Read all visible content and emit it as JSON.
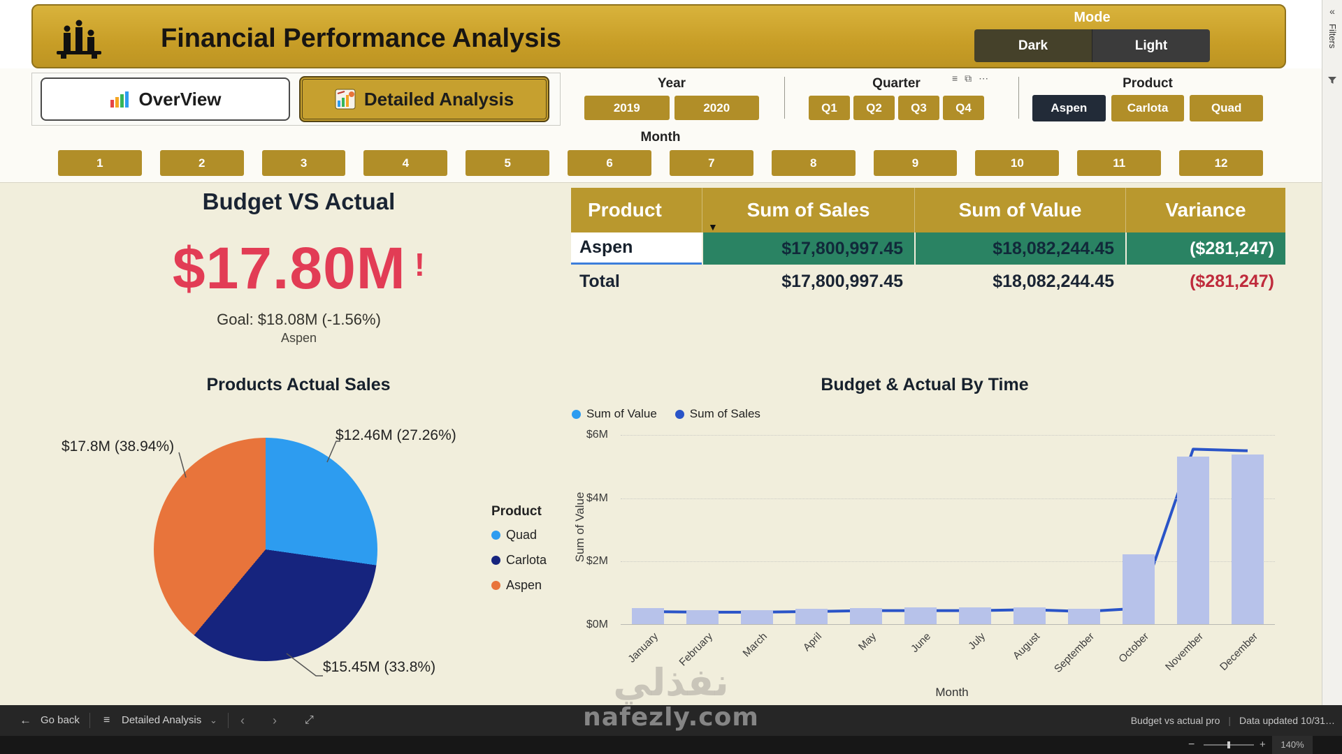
{
  "header": {
    "title": "Financial Performance Analysis",
    "mode": {
      "label": "Mode",
      "options": [
        "Dark",
        "Light"
      ]
    }
  },
  "nav_tabs": [
    {
      "id": "overview",
      "label": "OverView",
      "active": false
    },
    {
      "id": "detailed",
      "label": "Detailed Analysis",
      "active": true
    }
  ],
  "filters": {
    "year": {
      "label": "Year",
      "options": [
        "2019",
        "2020"
      ]
    },
    "quarter": {
      "label": "Quarter",
      "options": [
        "Q1",
        "Q2",
        "Q3",
        "Q4"
      ]
    },
    "product": {
      "label": "Product",
      "options": [
        "Aspen",
        "Carlota",
        "Quad"
      ],
      "selected": "Aspen"
    },
    "month": {
      "label": "Month",
      "options": [
        "1",
        "2",
        "3",
        "4",
        "5",
        "6",
        "7",
        "8",
        "9",
        "10",
        "11",
        "12"
      ]
    }
  },
  "kpi": {
    "title": "Budget VS Actual",
    "value": "$17.80M",
    "alert": "!",
    "goal": "Goal: $18.08M (-1.56%)",
    "product": "Aspen"
  },
  "table": {
    "columns": [
      "Product",
      "Sum of Sales",
      "Sum of Value",
      "Variance"
    ],
    "rows": [
      [
        "Aspen",
        "$17,800,997.45",
        "$18,082,244.45",
        "($281,247)"
      ]
    ],
    "total_row": [
      "Total",
      "$17,800,997.45",
      "$18,082,244.45",
      "($281,247)"
    ]
  },
  "chart_data": [
    {
      "type": "pie",
      "title": "Products Actual Sales",
      "legend_title": "Product",
      "legend_position": "right",
      "slices": [
        {
          "name": "Quad",
          "value_label": "$12.46M (27.26%)",
          "percent": 27.26,
          "color": "#2D9CF0"
        },
        {
          "name": "Carlota",
          "value_label": "$15.45M (33.8%)",
          "percent": 33.8,
          "color": "#16247E"
        },
        {
          "name": "Aspen",
          "value_label": "$17.8M (38.94%)",
          "percent": 38.94,
          "color": "#E8743B"
        }
      ]
    },
    {
      "type": "bar+line",
      "title": "Budget & Actual By Time",
      "xlabel": "Month",
      "ylabel": "Sum of Value",
      "ylim_m": [
        0,
        6
      ],
      "grid": "dotted-horizontal",
      "legend_position": "top-left",
      "yticks": [
        {
          "label": "$0M",
          "value": 0
        },
        {
          "label": "$2M",
          "value": 2
        },
        {
          "label": "$4M",
          "value": 4
        },
        {
          "label": "$6M",
          "value": 6
        }
      ],
      "categories": [
        "January",
        "February",
        "March",
        "April",
        "May",
        "June",
        "July",
        "August",
        "September",
        "October",
        "November",
        "December"
      ],
      "series": [
        {
          "name": "Sum of Value",
          "kind": "bar",
          "color": "#B7C2EA",
          "legend_color": "#2D9CF0",
          "values_m": [
            0.5,
            0.45,
            0.45,
            0.48,
            0.5,
            0.52,
            0.52,
            0.52,
            0.48,
            2.2,
            5.3,
            5.35
          ]
        },
        {
          "name": "Sum of Sales",
          "kind": "line",
          "color": "#2A54C8",
          "legend_color": "#2A54C8",
          "values_m": [
            0.42,
            0.4,
            0.4,
            0.42,
            0.45,
            0.45,
            0.45,
            0.48,
            0.42,
            0.52,
            5.55,
            5.5
          ]
        }
      ]
    }
  ],
  "filters_pane": {
    "label": "Filters",
    "collapse_icon": "«"
  },
  "footer": {
    "go_back": "Go back",
    "page_name": "Detailed Analysis",
    "report_name": "Budget vs actual pro",
    "updated": "Data updated 10/31…",
    "zoom": "140%"
  },
  "watermark": {
    "arabic": "نفذلي",
    "latin": "nafezly.com"
  }
}
